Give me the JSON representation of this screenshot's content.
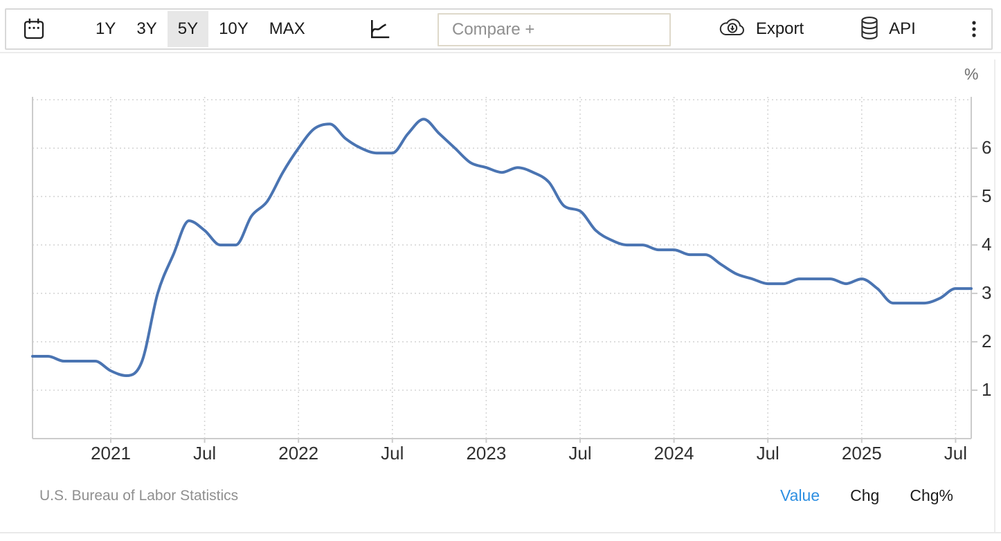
{
  "toolbar": {
    "ranges": [
      {
        "label": "1Y",
        "selected": false
      },
      {
        "label": "3Y",
        "selected": false
      },
      {
        "label": "5Y",
        "selected": true
      },
      {
        "label": "10Y",
        "selected": false
      },
      {
        "label": "MAX",
        "selected": false
      }
    ],
    "compare_placeholder": "Compare +",
    "export_label": "Export",
    "api_label": "API",
    "icons": {
      "calendar": "calendar-icon",
      "chart_type": "line-chart-icon",
      "export": "cloud-download-icon",
      "api": "database-icon",
      "menu": "kebab-menu-icon"
    }
  },
  "chart_data": {
    "type": "line",
    "unit": "%",
    "grid": "dotted",
    "legend": "none",
    "y_axis_min": 0,
    "y_axis_max": 7.06,
    "y_ticks": [
      1,
      2,
      3,
      4,
      5,
      6
    ],
    "y_gridlines": [
      1,
      2,
      3,
      4,
      5,
      6,
      7
    ],
    "x_tick_labels": [
      "2021",
      "Jul",
      "2022",
      "Jul",
      "2023",
      "Jul",
      "2024",
      "Jul",
      "2025",
      "Jul"
    ],
    "x_tick_positions": [
      5,
      11,
      17,
      23,
      29,
      35,
      41,
      47,
      53,
      59
    ],
    "x": [
      "2020-08",
      "2020-09",
      "2020-10",
      "2020-11",
      "2020-12",
      "2021-01",
      "2021-02",
      "2021-03",
      "2021-04",
      "2021-05",
      "2021-06",
      "2021-07",
      "2021-08",
      "2021-09",
      "2021-10",
      "2021-11",
      "2021-12",
      "2022-01",
      "2022-02",
      "2022-03",
      "2022-04",
      "2022-05",
      "2022-06",
      "2022-07",
      "2022-08",
      "2022-09",
      "2022-10",
      "2022-11",
      "2022-12",
      "2023-01",
      "2023-02",
      "2023-03",
      "2023-04",
      "2023-05",
      "2023-06",
      "2023-07",
      "2023-08",
      "2023-09",
      "2023-10",
      "2023-11",
      "2023-12",
      "2024-01",
      "2024-02",
      "2024-03",
      "2024-04",
      "2024-05",
      "2024-06",
      "2024-07",
      "2024-08",
      "2024-09",
      "2024-10",
      "2024-11",
      "2024-12",
      "2025-01",
      "2025-02",
      "2025-03",
      "2025-04",
      "2025-05",
      "2025-06",
      "2025-07",
      "2025-08"
    ],
    "series": [
      {
        "name": "Value",
        "color": "#4a74b2",
        "values": [
          1.7,
          1.7,
          1.6,
          1.6,
          1.6,
          1.4,
          1.3,
          1.6,
          3.0,
          3.8,
          4.5,
          4.3,
          4.0,
          4.0,
          4.6,
          4.9,
          5.5,
          6.0,
          6.4,
          6.5,
          6.2,
          6.0,
          5.9,
          5.9,
          6.3,
          6.6,
          6.3,
          6.0,
          5.7,
          5.6,
          5.5,
          5.6,
          5.5,
          5.3,
          4.8,
          4.7,
          4.3,
          4.1,
          4.0,
          4.0,
          3.9,
          3.9,
          3.8,
          3.8,
          3.6,
          3.4,
          3.3,
          3.2,
          3.2,
          3.3,
          3.3,
          3.3,
          3.2,
          3.3,
          3.1,
          2.8,
          2.8,
          2.8,
          2.9,
          3.1,
          3.1
        ]
      }
    ],
    "colors": {
      "line": "#4a74b2",
      "grid": "#d6d6d6",
      "axis": "#cbcbcb",
      "tick_text": "#303030"
    }
  },
  "footer": {
    "source": "U.S. Bureau of Labor Statistics",
    "tabs": [
      {
        "label": "Value",
        "active": true
      },
      {
        "label": "Chg",
        "active": false
      },
      {
        "label": "Chg%",
        "active": false
      }
    ],
    "active_color": "#2d8fe2"
  }
}
